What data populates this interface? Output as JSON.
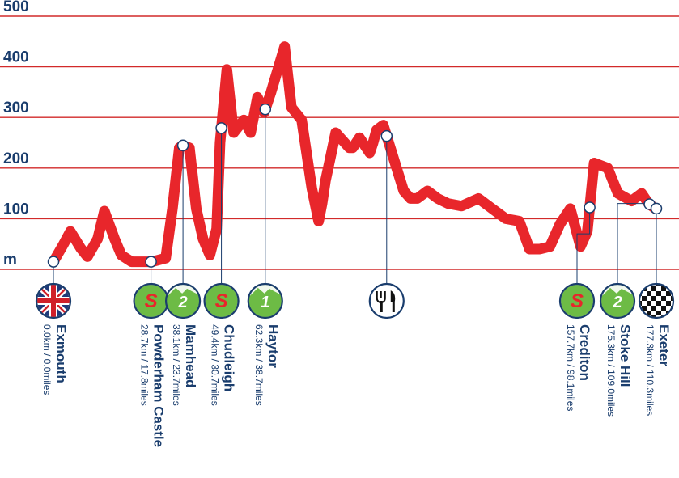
{
  "chart_data": {
    "type": "area",
    "y_ticks": [
      "500",
      "400",
      "300",
      "200",
      "100",
      "m"
    ],
    "ylim": [
      0,
      500
    ],
    "grid": true,
    "colors": {
      "profile": "#e8262b",
      "grid": "#d22a2a",
      "text": "#1a3d6d",
      "icon_green": "#6dbb45",
      "icon_border": "#1a3d6d"
    },
    "profile": {
      "x": [
        0,
        3,
        5,
        8,
        10,
        13,
        15,
        18,
        20,
        23,
        26,
        29,
        33,
        35,
        37,
        38,
        40,
        42,
        44,
        46,
        48,
        49,
        51,
        53,
        56,
        58,
        60,
        62,
        64,
        66,
        68,
        70,
        73,
        76,
        78,
        79,
        80,
        83,
        87,
        88,
        90,
        93,
        94,
        95,
        97,
        100,
        103,
        105,
        107,
        110,
        113,
        116,
        120,
        125,
        130,
        133,
        137,
        140,
        143,
        146,
        149,
        152,
        155,
        157,
        159,
        163,
        166,
        170,
        173,
        175,
        177
      ],
      "y": [
        15,
        50,
        75,
        42,
        25,
        60,
        115,
        60,
        28,
        15,
        15,
        15,
        22,
        120,
        240,
        245,
        240,
        120,
        60,
        28,
        80,
        250,
        395,
        270,
        295,
        270,
        340,
        310,
        350,
        395,
        440,
        320,
        295,
        160,
        95,
        130,
        175,
        270,
        240,
        240,
        260,
        230,
        250,
        275,
        285,
        220,
        155,
        140,
        140,
        155,
        140,
        130,
        125,
        140,
        115,
        100,
        95,
        40,
        40,
        45,
        90,
        120,
        45,
        75,
        210,
        200,
        150,
        135,
        150,
        130,
        120
      ]
    },
    "locations": [
      {
        "name": "Exmouth",
        "distance": "0.0km / 0.0miles",
        "km": 0.0,
        "icon": "union-flag-icon"
      },
      {
        "name": "Powderham Castle",
        "distance": "28.7km / 17.8miles",
        "km": 28.7,
        "icon": "sprint-icon",
        "icon_letter": "S"
      },
      {
        "name": "Mamhead",
        "distance": "38.1km / 23.7miles",
        "km": 38.1,
        "icon": "climb-2-icon",
        "icon_letter": "2"
      },
      {
        "name": "Chudleigh",
        "distance": "49.4km / 30.7miles",
        "km": 49.4,
        "icon": "sprint-icon",
        "icon_letter": "S"
      },
      {
        "name": "Haytor",
        "distance": "62.3km / 38.7miles",
        "km": 62.3,
        "icon": "climb-1-icon",
        "icon_letter": "1"
      },
      {
        "name": "",
        "distance": "",
        "km": 98.0,
        "icon": "feed-zone-icon"
      },
      {
        "name": "Crediton",
        "distance": "157.7km / 98.1miles",
        "km": 157.7,
        "icon": "sprint-icon",
        "icon_letter": "S"
      },
      {
        "name": "Stoke Hill",
        "distance": "175.3km / 109.0miles",
        "km": 175.3,
        "icon": "climb-2-icon",
        "icon_letter": "2"
      },
      {
        "name": "Exeter",
        "distance": "177.3km / 110.3miles",
        "km": 177.3,
        "icon": "finish-flag-icon"
      }
    ]
  }
}
